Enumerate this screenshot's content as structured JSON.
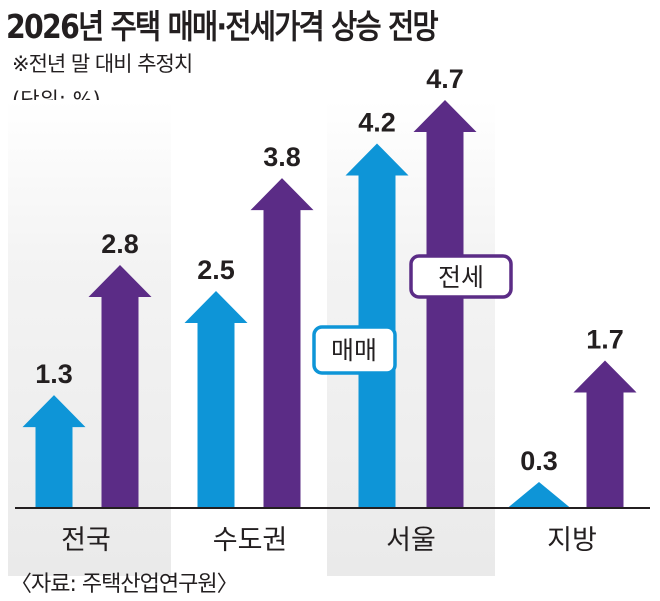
{
  "chart_data": {
    "type": "bar",
    "title": "2026년 주택 매매·전세가격 상승 전망",
    "subtitle": "※전년 말 대비 추정치",
    "unit": "(단위: %)",
    "source": "〈자료: 주택산업연구원〉",
    "categories": [
      "전국",
      "수도권",
      "서울",
      "지방"
    ],
    "series": [
      {
        "name": "매매",
        "color": "#0e95d7",
        "values": [
          1.3,
          2.5,
          4.2,
          0.3
        ]
      },
      {
        "name": "전세",
        "color": "#5b2c86",
        "values": [
          2.8,
          3.8,
          4.7,
          1.7
        ]
      }
    ],
    "value_labels": [
      [
        "1.3",
        "2.5",
        "4.2",
        "0.3"
      ],
      [
        "2.8",
        "3.8",
        "4.7",
        "1.7"
      ]
    ],
    "bar_shape": "up-arrow",
    "grid": false,
    "legend_placement": "inline-center"
  }
}
